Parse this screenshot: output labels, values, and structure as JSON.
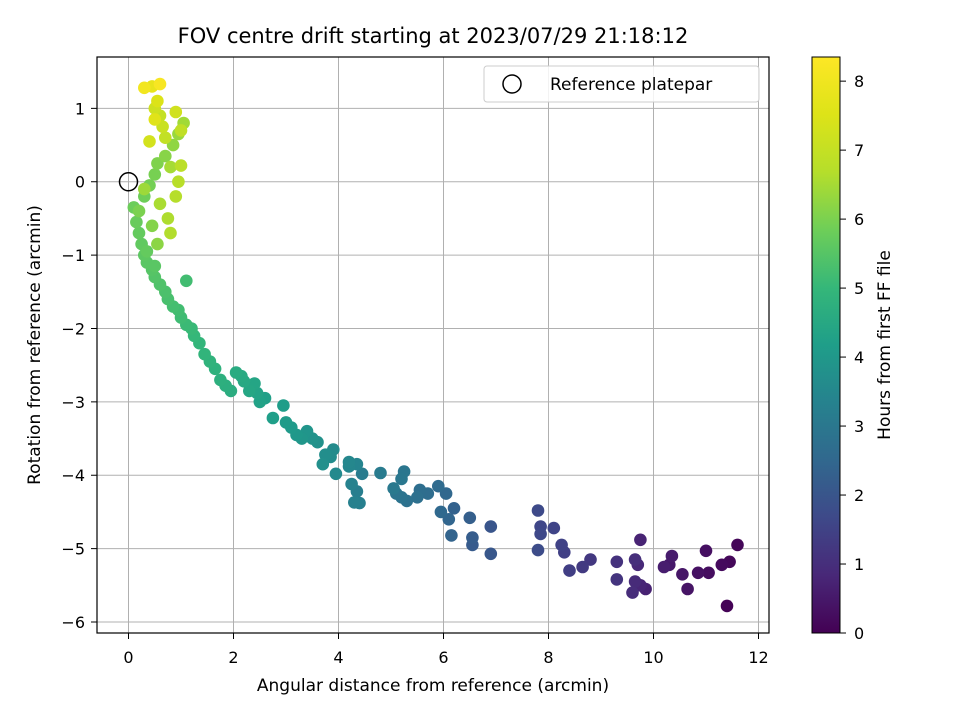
{
  "chart_data": {
    "type": "scatter",
    "title": "FOV centre drift starting at 2023/07/29 21:18:12",
    "xlabel": "Angular distance from reference (arcmin)",
    "ylabel": "Rotation from reference (arcmin)",
    "xlim": [
      -0.6,
      12.2
    ],
    "ylim": [
      -6.15,
      1.7
    ],
    "xticks": [
      "0",
      "2",
      "4",
      "6",
      "8",
      "10",
      "12"
    ],
    "yticks": [
      "−6",
      "−5",
      "−4",
      "−3",
      "−2",
      "−1",
      "0",
      "1"
    ],
    "grid": true,
    "legend": {
      "placement": "top-right",
      "entries": [
        "Reference platepar"
      ]
    },
    "reference_point": {
      "x": 0,
      "y": 0
    },
    "colorbar": {
      "label": "Hours from first FF file",
      "range": [
        0,
        8.35
      ],
      "ticks": [
        "0",
        "1",
        "2",
        "3",
        "4",
        "5",
        "6",
        "7",
        "8"
      ],
      "colormap": "viridis"
    },
    "points": [
      [
        11.4,
        -5.78,
        0.05
      ],
      [
        11.6,
        -4.95,
        0.1
      ],
      [
        11.45,
        -5.18,
        0.15
      ],
      [
        11.3,
        -5.22,
        0.2
      ],
      [
        11.05,
        -5.33,
        0.25
      ],
      [
        11.0,
        -5.03,
        0.3
      ],
      [
        10.85,
        -5.33,
        0.35
      ],
      [
        10.65,
        -5.55,
        0.4
      ],
      [
        10.55,
        -5.35,
        0.45
      ],
      [
        10.3,
        -5.22,
        0.5
      ],
      [
        10.35,
        -5.1,
        0.55
      ],
      [
        10.2,
        -5.25,
        0.6
      ],
      [
        9.85,
        -5.55,
        0.7
      ],
      [
        9.75,
        -4.88,
        0.75
      ],
      [
        9.75,
        -5.5,
        0.8
      ],
      [
        9.7,
        -5.22,
        0.85
      ],
      [
        9.65,
        -5.45,
        0.9
      ],
      [
        9.6,
        -5.6,
        0.95
      ],
      [
        9.65,
        -5.15,
        1.0
      ],
      [
        9.3,
        -5.18,
        1.1
      ],
      [
        9.3,
        -5.42,
        1.15
      ],
      [
        8.8,
        -5.15,
        1.25
      ],
      [
        8.65,
        -5.25,
        1.3
      ],
      [
        8.4,
        -5.3,
        1.4
      ],
      [
        8.3,
        -5.05,
        1.45
      ],
      [
        8.25,
        -4.95,
        1.5
      ],
      [
        8.1,
        -4.72,
        1.55
      ],
      [
        7.85,
        -4.7,
        1.6
      ],
      [
        7.85,
        -4.8,
        1.65
      ],
      [
        7.8,
        -4.48,
        1.7
      ],
      [
        7.8,
        -5.02,
        1.75
      ],
      [
        6.9,
        -4.7,
        2.0
      ],
      [
        6.9,
        -5.07,
        2.05
      ],
      [
        6.55,
        -4.95,
        2.15
      ],
      [
        6.55,
        -4.85,
        2.2
      ],
      [
        6.5,
        -4.58,
        2.25
      ],
      [
        6.2,
        -4.45,
        2.35
      ],
      [
        6.15,
        -4.82,
        2.4
      ],
      [
        6.1,
        -4.6,
        2.45
      ],
      [
        6.05,
        -4.25,
        2.5
      ],
      [
        5.95,
        -4.5,
        2.55
      ],
      [
        5.9,
        -4.15,
        2.6
      ],
      [
        5.7,
        -4.25,
        2.65
      ],
      [
        5.55,
        -4.2,
        2.7
      ],
      [
        5.5,
        -4.3,
        2.75
      ],
      [
        5.3,
        -4.35,
        2.8
      ],
      [
        5.2,
        -4.3,
        2.85
      ],
      [
        5.1,
        -4.25,
        2.9
      ],
      [
        5.25,
        -3.95,
        2.95
      ],
      [
        5.2,
        -4.05,
        3.0
      ],
      [
        5.05,
        -4.18,
        3.05
      ],
      [
        4.8,
        -3.97,
        3.1
      ],
      [
        4.45,
        -3.98,
        3.15
      ],
      [
        4.35,
        -4.22,
        3.2
      ],
      [
        4.4,
        -4.38,
        3.25
      ],
      [
        4.3,
        -4.37,
        3.3
      ],
      [
        4.25,
        -4.12,
        3.35
      ],
      [
        4.35,
        -3.85,
        3.4
      ],
      [
        4.2,
        -3.88,
        3.45
      ],
      [
        4.2,
        -3.82,
        3.5
      ],
      [
        3.95,
        -3.98,
        3.55
      ],
      [
        3.9,
        -3.65,
        3.6
      ],
      [
        3.85,
        -3.75,
        3.65
      ],
      [
        3.75,
        -3.72,
        3.7
      ],
      [
        3.7,
        -3.85,
        3.75
      ],
      [
        3.6,
        -3.55,
        3.8
      ],
      [
        3.5,
        -3.5,
        3.85
      ],
      [
        3.4,
        -3.4,
        3.9
      ],
      [
        3.3,
        -3.5,
        3.95
      ],
      [
        3.2,
        -3.45,
        4.0
      ],
      [
        3.1,
        -3.35,
        4.05
      ],
      [
        3.0,
        -3.28,
        4.1
      ],
      [
        2.95,
        -3.05,
        4.15
      ],
      [
        2.75,
        -3.22,
        4.2
      ],
      [
        2.6,
        -2.95,
        4.25
      ],
      [
        2.5,
        -3.0,
        4.3
      ],
      [
        2.45,
        -2.88,
        4.35
      ],
      [
        2.4,
        -2.75,
        4.4
      ],
      [
        2.3,
        -2.85,
        4.45
      ],
      [
        2.2,
        -2.72,
        4.5
      ],
      [
        2.15,
        -2.65,
        4.55
      ],
      [
        2.05,
        -2.6,
        4.6
      ],
      [
        1.95,
        -2.85,
        4.65
      ],
      [
        1.85,
        -2.78,
        4.7
      ],
      [
        1.75,
        -2.7,
        4.75
      ],
      [
        1.65,
        -2.55,
        4.8
      ],
      [
        1.55,
        -2.45,
        4.85
      ],
      [
        1.45,
        -2.35,
        4.9
      ],
      [
        1.35,
        -2.2,
        4.95
      ],
      [
        1.25,
        -2.1,
        5.0
      ],
      [
        1.2,
        -2.0,
        5.05
      ],
      [
        1.1,
        -1.95,
        5.1
      ],
      [
        1.0,
        -1.85,
        5.15
      ],
      [
        0.95,
        -1.75,
        5.2
      ],
      [
        0.85,
        -1.7,
        5.25
      ],
      [
        0.75,
        -1.6,
        5.3
      ],
      [
        0.7,
        -1.5,
        5.35
      ],
      [
        0.6,
        -1.4,
        5.4
      ],
      [
        0.5,
        -1.3,
        5.45
      ],
      [
        0.45,
        -1.2,
        5.5
      ],
      [
        0.35,
        -1.1,
        5.55
      ],
      [
        0.3,
        -1.0,
        5.6
      ],
      [
        0.25,
        -0.85,
        5.65
      ],
      [
        0.2,
        -0.7,
        5.7
      ],
      [
        0.15,
        -0.55,
        5.75
      ],
      [
        0.1,
        -0.35,
        5.8
      ],
      [
        0.3,
        -0.2,
        5.85
      ],
      [
        0.4,
        -0.05,
        5.9
      ],
      [
        0.5,
        0.1,
        5.95
      ],
      [
        1.1,
        -1.35,
        5.2
      ],
      [
        0.55,
        0.25,
        6.05
      ],
      [
        0.7,
        0.35,
        6.15
      ],
      [
        0.85,
        0.5,
        6.25
      ],
      [
        0.95,
        0.65,
        6.35
      ],
      [
        1.05,
        0.8,
        6.45
      ],
      [
        0.8,
        0.2,
        6.5
      ],
      [
        0.75,
        -0.5,
        6.6
      ],
      [
        0.8,
        -0.7,
        6.65
      ],
      [
        0.95,
        0.0,
        6.75
      ],
      [
        0.6,
        0.9,
        7.0
      ],
      [
        0.5,
        1.0,
        7.2
      ],
      [
        0.55,
        1.1,
        7.5
      ],
      [
        0.45,
        1.3,
        7.8
      ],
      [
        0.3,
        1.28,
        8.05
      ],
      [
        0.6,
        1.33,
        8.2
      ],
      [
        0.5,
        0.85,
        7.6
      ],
      [
        0.65,
        0.75,
        7.1
      ],
      [
        0.9,
        0.95,
        7.25
      ],
      [
        1.0,
        0.7,
        6.9
      ],
      [
        0.4,
        0.55,
        7.3
      ],
      [
        0.3,
        -0.1,
        6.4
      ],
      [
        0.6,
        -0.3,
        6.55
      ],
      [
        0.9,
        -0.2,
        6.7
      ],
      [
        0.7,
        0.6,
        6.95
      ],
      [
        1.0,
        0.22,
        6.8
      ],
      [
        0.45,
        -0.6,
        6.1
      ],
      [
        0.2,
        -0.4,
        6.0
      ],
      [
        0.55,
        -0.85,
        6.2
      ],
      [
        0.35,
        -0.95,
        5.7
      ],
      [
        0.5,
        -1.15,
        5.55
      ]
    ]
  }
}
